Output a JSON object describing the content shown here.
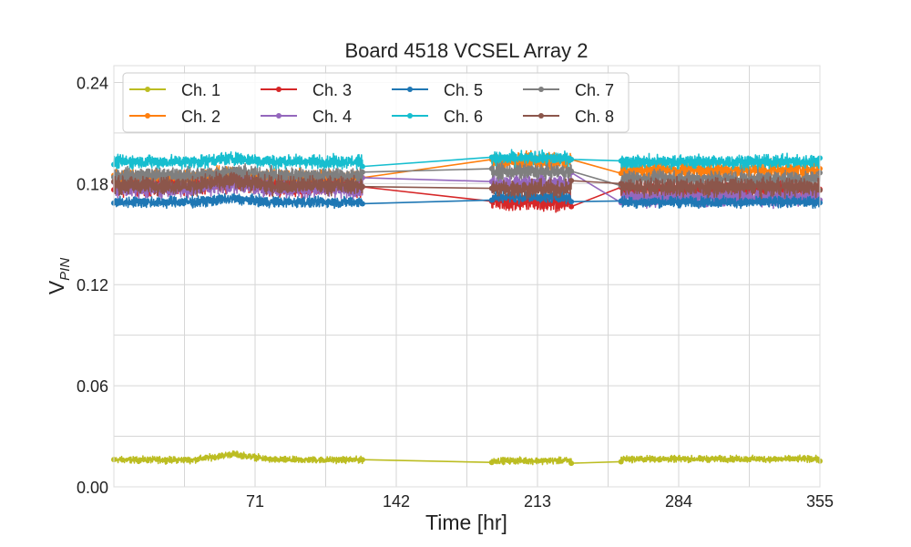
{
  "chart_data": {
    "type": "line",
    "title": "Board 4518 VCSEL Array 2",
    "xlabel": "Time [hr]",
    "ylabel_main": "V",
    "ylabel_sub": "PIN",
    "xlim": [
      0,
      355
    ],
    "ylim": [
      0,
      0.25
    ],
    "xticks": [
      71,
      142,
      213,
      284,
      355
    ],
    "xtick_labels": [
      "71",
      "142",
      "213",
      "284",
      "355"
    ],
    "x_minor_grid": [
      35.5,
      106.5,
      177.5,
      248.5,
      319.5
    ],
    "yticks": [
      0.0,
      0.06,
      0.12,
      0.18,
      0.24
    ],
    "ytick_labels": [
      "0.00",
      "0.06",
      "0.12",
      "0.18",
      "0.24"
    ],
    "y_minor_grid": [
      0.03,
      0.09,
      0.15,
      0.21
    ],
    "grid": true,
    "legend_position": "top-left",
    "legend_columns": 4,
    "segments": [
      [
        0,
        125
      ],
      [
        190,
        230
      ],
      [
        255,
        355
      ]
    ],
    "draw_order": [
      0,
      1,
      2,
      3,
      4,
      6,
      7,
      5
    ],
    "series": [
      {
        "name": "Ch. 1",
        "color": "#bcbd22",
        "level": [
          0.016,
          0.0155,
          0.0165
        ],
        "noise": 0.0015,
        "bump": [
          40,
          80,
          0.0035
        ]
      },
      {
        "name": "Ch. 2",
        "color": "#ff7f0e",
        "level": [
          0.183,
          0.193,
          0.188
        ],
        "noise": 0.004,
        "bump": [
          40,
          80,
          0.003
        ]
      },
      {
        "name": "Ch. 3",
        "color": "#d62728",
        "level": [
          0.178,
          0.169,
          0.177
        ],
        "noise": 0.004,
        "bump": [
          40,
          80,
          0.003
        ]
      },
      {
        "name": "Ch. 4",
        "color": "#9467bd",
        "level": [
          0.177,
          0.18,
          0.172
        ],
        "noise": 0.004,
        "bump": [
          40,
          80,
          0.003
        ]
      },
      {
        "name": "Ch. 5",
        "color": "#1f77b4",
        "level": [
          0.169,
          0.172,
          0.169
        ],
        "noise": 0.0025,
        "bump": [
          40,
          80,
          0.002
        ]
      },
      {
        "name": "Ch. 6",
        "color": "#17becf",
        "level": [
          0.193,
          0.195,
          0.193
        ],
        "noise": 0.003,
        "bump": [
          40,
          80,
          0.002
        ]
      },
      {
        "name": "Ch. 7",
        "color": "#7f7f7f",
        "level": [
          0.185,
          0.187,
          0.183
        ],
        "noise": 0.0035,
        "bump": [
          40,
          80,
          0.002
        ]
      },
      {
        "name": "Ch. 8",
        "color": "#8c564b",
        "level": [
          0.179,
          0.177,
          0.178
        ],
        "noise": 0.004,
        "bump": [
          40,
          80,
          0.003
        ]
      }
    ]
  }
}
